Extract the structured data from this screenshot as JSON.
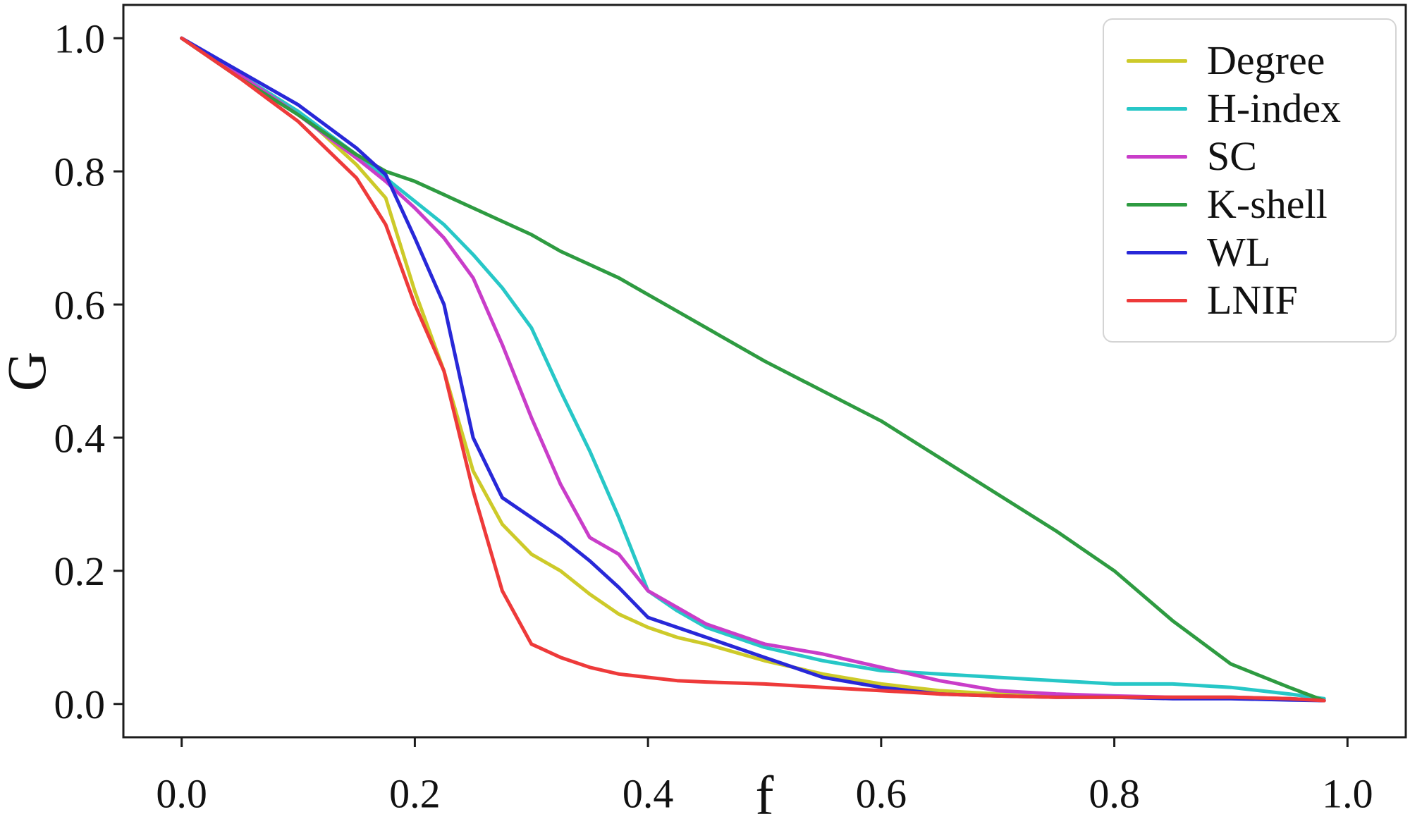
{
  "chart_data": {
    "type": "line",
    "title": "",
    "xlabel": "f",
    "ylabel": "G",
    "xlim": [
      0.0,
      1.0
    ],
    "ylim": [
      0.0,
      1.0
    ],
    "grid": false,
    "legend_position": "upper right",
    "frame_color": "#1c1c1c",
    "text_color": "#111111",
    "x_tick_values": [
      0.0,
      0.2,
      0.4,
      0.6,
      0.8,
      1.0
    ],
    "x_tick_labels": [
      "0.0",
      "0.2",
      "0.4",
      "0.6",
      "0.8",
      "1.0"
    ],
    "y_tick_values": [
      0.0,
      0.2,
      0.4,
      0.6,
      0.8,
      1.0
    ],
    "y_tick_labels": [
      "0.0",
      "0.2",
      "0.4",
      "0.6",
      "0.8",
      "1.0"
    ],
    "x": [
      0,
      0.05,
      0.1,
      0.15,
      0.175,
      0.2,
      0.225,
      0.25,
      0.275,
      0.3,
      0.325,
      0.35,
      0.375,
      0.4,
      0.425,
      0.45,
      0.5,
      0.55,
      0.6,
      0.65,
      0.7,
      0.75,
      0.8,
      0.85,
      0.9,
      0.95,
      0.98
    ],
    "series": [
      {
        "name": "Degree",
        "color": "#cdca29",
        "values": [
          1.0,
          0.945,
          0.89,
          0.81,
          0.76,
          0.62,
          0.5,
          0.35,
          0.27,
          0.225,
          0.2,
          0.165,
          0.135,
          0.115,
          0.1,
          0.09,
          0.065,
          0.045,
          0.03,
          0.02,
          0.015,
          0.012,
          0.01,
          0.01,
          0.01,
          0.008,
          0.005
        ]
      },
      {
        "name": "H-index",
        "color": "#27c7c7",
        "values": [
          1.0,
          0.945,
          0.89,
          0.825,
          0.79,
          0.755,
          0.72,
          0.675,
          0.625,
          0.565,
          0.47,
          0.38,
          0.28,
          0.17,
          0.14,
          0.115,
          0.085,
          0.065,
          0.05,
          0.045,
          0.04,
          0.035,
          0.03,
          0.03,
          0.025,
          0.015,
          0.008
        ]
      },
      {
        "name": "SC",
        "color": "#c93dc9",
        "values": [
          1.0,
          0.945,
          0.885,
          0.82,
          0.785,
          0.745,
          0.7,
          0.64,
          0.54,
          0.43,
          0.33,
          0.25,
          0.225,
          0.17,
          0.145,
          0.12,
          0.09,
          0.075,
          0.055,
          0.035,
          0.02,
          0.015,
          0.012,
          0.01,
          0.01,
          0.008,
          0.005
        ]
      },
      {
        "name": "K-shell",
        "color": "#2e9b41",
        "values": [
          1.0,
          0.94,
          0.885,
          0.825,
          0.8,
          0.785,
          0.765,
          0.745,
          0.725,
          0.705,
          0.68,
          0.66,
          0.64,
          0.615,
          0.59,
          0.565,
          0.515,
          0.47,
          0.425,
          0.37,
          0.315,
          0.26,
          0.2,
          0.125,
          0.06,
          0.025,
          0.005
        ]
      },
      {
        "name": "WL",
        "color": "#2828d8",
        "values": [
          1.0,
          0.95,
          0.9,
          0.835,
          0.795,
          0.7,
          0.6,
          0.4,
          0.31,
          0.28,
          0.25,
          0.215,
          0.175,
          0.13,
          0.115,
          0.1,
          0.07,
          0.04,
          0.025,
          0.015,
          0.012,
          0.01,
          0.01,
          0.008,
          0.008,
          0.006,
          0.005
        ]
      },
      {
        "name": "LNIF",
        "color": "#ee3a3a",
        "values": [
          1.0,
          0.94,
          0.875,
          0.79,
          0.72,
          0.6,
          0.5,
          0.32,
          0.17,
          0.09,
          0.07,
          0.055,
          0.045,
          0.04,
          0.035,
          0.033,
          0.03,
          0.025,
          0.02,
          0.015,
          0.012,
          0.01,
          0.01,
          0.01,
          0.01,
          0.008,
          0.005
        ]
      }
    ]
  }
}
